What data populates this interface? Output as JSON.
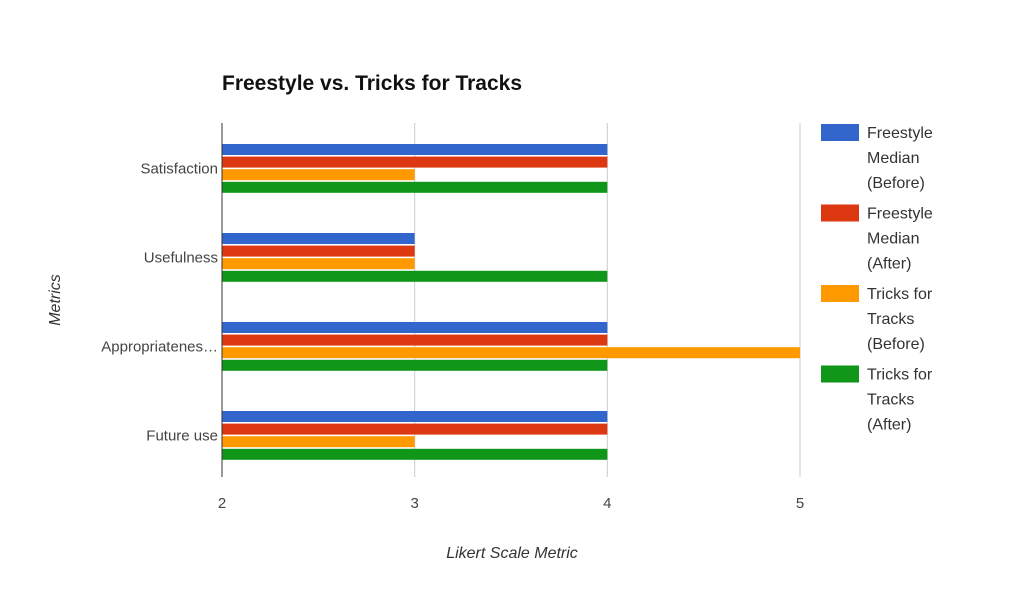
{
  "chart_data": {
    "type": "bar",
    "orientation": "horizontal",
    "title": "Freestyle vs. Tricks for Tracks",
    "xlabel": "Likert Scale Metric",
    "ylabel": "Metrics",
    "xlim": [
      2,
      5
    ],
    "xticks": [
      2,
      3,
      4,
      5
    ],
    "grid": true,
    "legend_position": "right",
    "categories": [
      "Satisfaction",
      "Usefulness",
      "Appropriatenes…",
      "Future use"
    ],
    "series": [
      {
        "name": "Freestyle Median (Before)",
        "legend_lines": [
          "Freestyle",
          "Median",
          "(Before)"
        ],
        "color": "#3366cc",
        "values": [
          4,
          3,
          4,
          4
        ]
      },
      {
        "name": "Freestyle Median (After)",
        "legend_lines": [
          "Freestyle",
          "Median",
          "(After)"
        ],
        "color": "#dc3912",
        "values": [
          4,
          3,
          4,
          4
        ]
      },
      {
        "name": "Tricks for Tracks (Before)",
        "legend_lines": [
          "Tricks for",
          "Tracks",
          "(Before)"
        ],
        "color": "#ff9900",
        "values": [
          3,
          3,
          5,
          3
        ]
      },
      {
        "name": "Tricks for Tracks (After)",
        "legend_lines": [
          "Tricks for",
          "Tracks",
          "(After)"
        ],
        "color": "#109618",
        "values": [
          4,
          4,
          4,
          4
        ]
      }
    ]
  }
}
